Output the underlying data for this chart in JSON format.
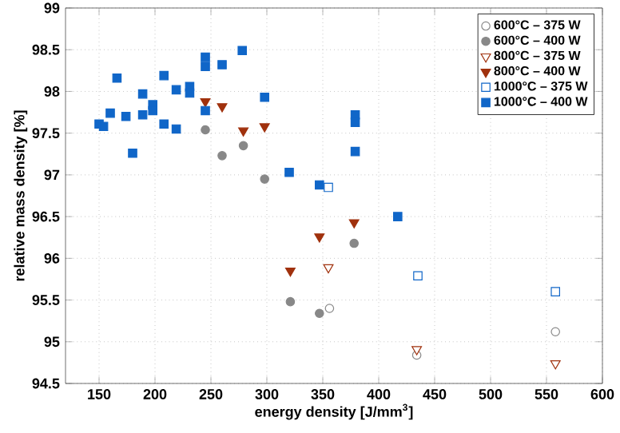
{
  "chart_data": {
    "type": "scatter",
    "xlabel": "energy density [J/mm$^{3}$]",
    "ylabel": "relative mass density [%]",
    "xlim": [
      120,
      600
    ],
    "ylim": [
      94.5,
      99
    ],
    "xticks": [
      150,
      200,
      250,
      300,
      350,
      400,
      450,
      500,
      550,
      600
    ],
    "yticks": [
      94.5,
      95,
      95.5,
      96,
      96.5,
      97,
      97.5,
      98,
      98.5,
      99
    ],
    "grid": true,
    "legend": "top right",
    "series": [
      {
        "name": "600°C – 375 W",
        "color": "#888888",
        "marker": "circle",
        "x": [
          356,
          434,
          558
        ],
        "values": [
          95.4,
          94.84,
          95.12
        ]
      },
      {
        "name": "600°C – 400 W",
        "color": "#888888",
        "marker": "circle",
        "x": [
          245,
          260,
          279,
          298,
          321,
          347,
          378
        ],
        "values": [
          97.54,
          97.23,
          97.35,
          96.95,
          95.48,
          95.34,
          96.18
        ]
      },
      {
        "name": "800°C – 375 W",
        "color": "#a0310d",
        "marker": "triangle",
        "x": [
          355,
          434,
          558
        ],
        "values": [
          95.89,
          94.91,
          94.74
        ]
      },
      {
        "name": "800°C – 400 W",
        "color": "#a0310d",
        "marker": "triangle",
        "x": [
          245,
          260,
          279,
          298,
          321,
          347,
          378
        ],
        "values": [
          97.88,
          97.82,
          97.53,
          97.58,
          95.85,
          96.26,
          96.43
        ]
      },
      {
        "name": "1000°C – 375 W",
        "color": "#1066c8",
        "marker": "square",
        "x": [
          355,
          435,
          558
        ],
        "values": [
          96.85,
          95.79,
          95.6
        ]
      },
      {
        "name": "1000°C – 400 W",
        "color": "#1066c8",
        "marker": "square",
        "x": [
          150,
          154,
          166,
          160,
          174,
          180,
          189,
          189,
          198,
          198,
          208,
          208,
          219,
          219,
          231,
          231,
          245,
          245,
          245,
          260,
          278,
          298,
          320,
          347,
          379,
          379,
          379,
          417
        ],
        "values": [
          97.61,
          97.58,
          98.16,
          97.74,
          97.7,
          97.26,
          97.97,
          97.72,
          97.84,
          97.77,
          98.19,
          97.61,
          98.02,
          97.55,
          98.06,
          97.98,
          98.41,
          98.3,
          97.77,
          98.32,
          98.49,
          97.93,
          97.03,
          96.88,
          97.72,
          97.63,
          97.28,
          96.5
        ]
      }
    ]
  }
}
